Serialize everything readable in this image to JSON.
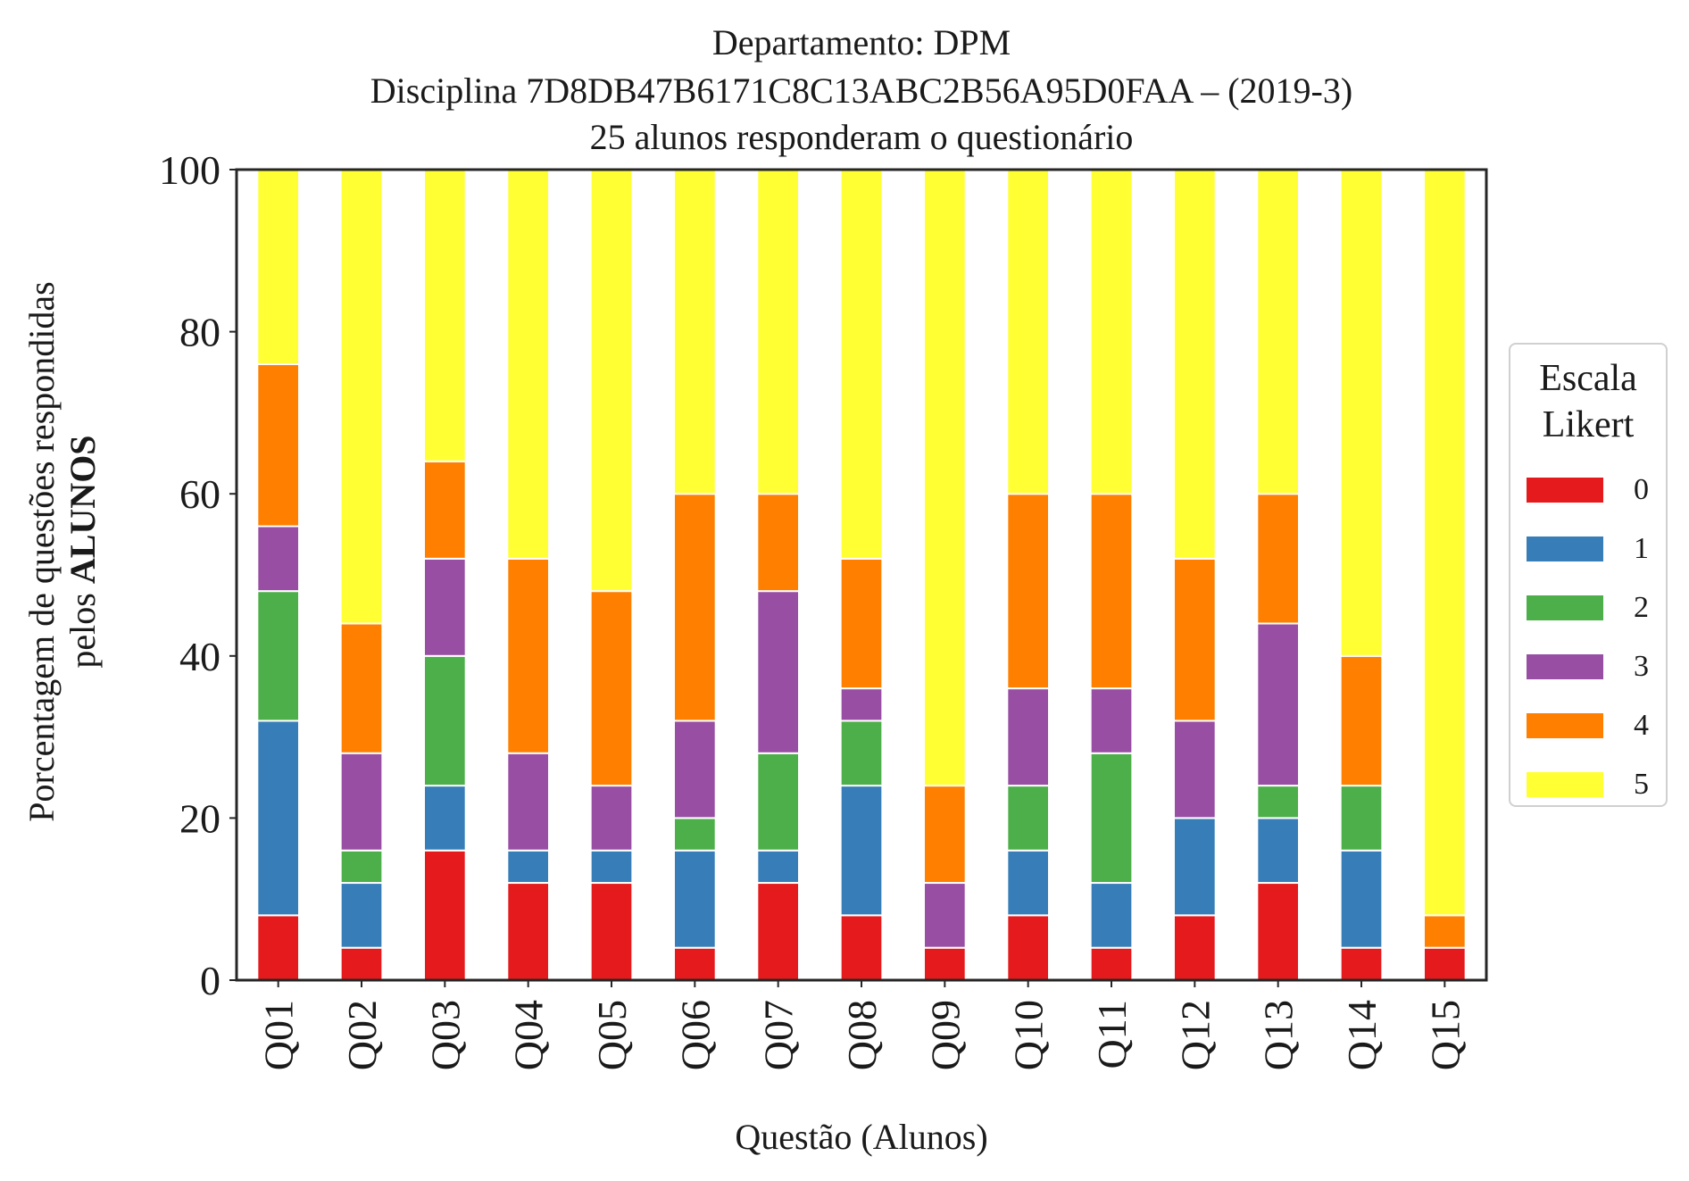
{
  "chart_data": {
    "type": "bar",
    "stacked": true,
    "title_lines": [
      "Departamento: DPM",
      "Disciplina 7D8DB47B6171C8C13ABC2B56A95D0FAA – (2019-3)",
      "25 alunos responderam o questionário"
    ],
    "xlabel": "Questão (Alunos)",
    "ylabel_line1": "Porcentagem de questões respondidas",
    "ylabel_line2_prefix": "pelos ",
    "ylabel_line2_bold": "ALUNOS",
    "ylim": [
      0,
      100
    ],
    "yticks": [
      0,
      20,
      40,
      60,
      80,
      100
    ],
    "grid": false,
    "legend_title_lines": [
      "Escala",
      "Likert"
    ],
    "legend_position": "right",
    "categories": [
      "Q01",
      "Q02",
      "Q03",
      "Q04",
      "Q05",
      "Q06",
      "Q07",
      "Q08",
      "Q09",
      "Q10",
      "Q11",
      "Q12",
      "Q13",
      "Q14",
      "Q15"
    ],
    "series": [
      {
        "name": "0",
        "color": "#e41a1c",
        "values": [
          8,
          4,
          16,
          12,
          12,
          4,
          12,
          8,
          4,
          8,
          4,
          8,
          12,
          4,
          4
        ]
      },
      {
        "name": "1",
        "color": "#377eb8",
        "values": [
          24,
          8,
          8,
          4,
          4,
          12,
          4,
          16,
          0,
          8,
          8,
          12,
          8,
          12,
          0
        ]
      },
      {
        "name": "2",
        "color": "#4daf4a",
        "values": [
          16,
          4,
          16,
          0,
          0,
          4,
          12,
          8,
          0,
          8,
          16,
          0,
          4,
          8,
          0
        ]
      },
      {
        "name": "3",
        "color": "#984ea3",
        "values": [
          8,
          12,
          12,
          12,
          8,
          12,
          20,
          4,
          8,
          12,
          8,
          12,
          20,
          0,
          0
        ]
      },
      {
        "name": "4",
        "color": "#ff7f00",
        "values": [
          20,
          16,
          12,
          24,
          24,
          28,
          12,
          16,
          12,
          24,
          24,
          20,
          16,
          16,
          4
        ]
      },
      {
        "name": "5",
        "color": "#ffff33",
        "values": [
          24,
          56,
          36,
          48,
          52,
          40,
          40,
          48,
          76,
          40,
          40,
          48,
          40,
          60,
          92
        ]
      }
    ]
  }
}
